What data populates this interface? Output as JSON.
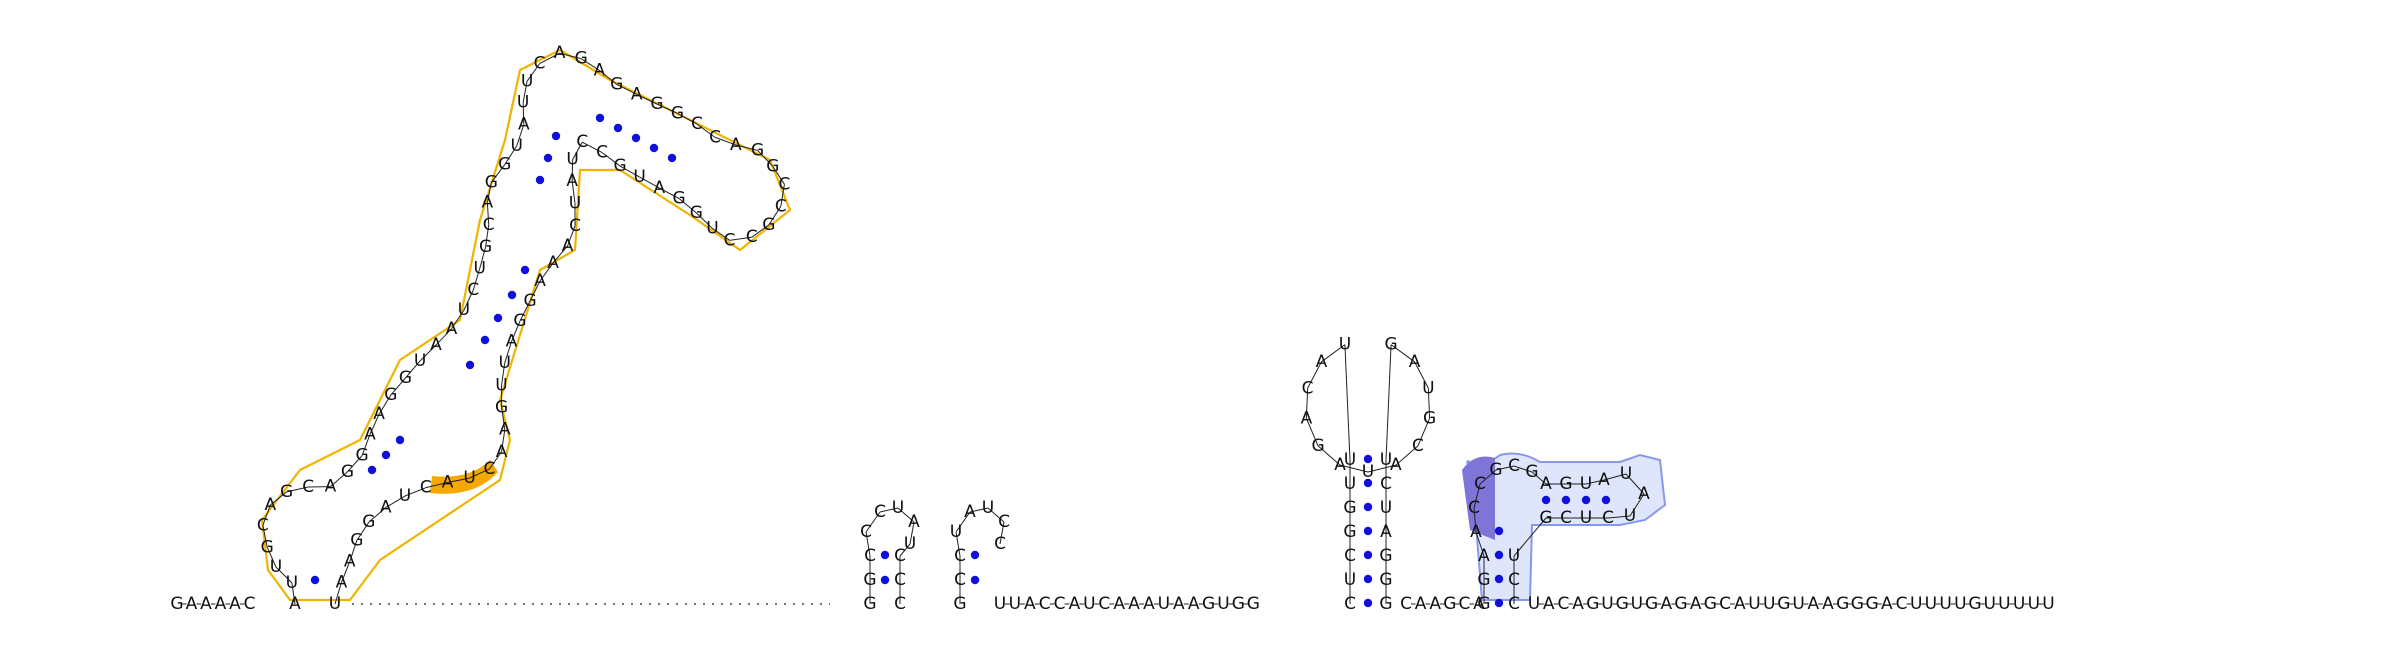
{
  "colors": {
    "background": "#ffffff",
    "nucleotide_text": "#111111",
    "backbone": "#222222",
    "base_pair_dot": "#1010dd",
    "highlight_orange_outline": "#f0b400",
    "highlight_orange_fill": "#f5a800",
    "highlight_blue_outline": "#8898e8",
    "highlight_blue_fill": "#dfe6fb",
    "highlight_blue_accent": "#7f74d8"
  },
  "sequence": {
    "prefix": "GAAAAC",
    "structured_5prime": "AUUGCAGCAGGAAGGUAAUCUGCAGGUAUUCAGAGAGGCCAGGCCGCCUGGAUGCCUAUCAAAGGAUUGAACUACUAGGAAU",
    "hairpins": "GGCCCUAUCCCGCCUAUCC",
    "middle": "UUACCAUCAAAUAAGUGG",
    "large_hairpin": "CUCGGUUUACAGAUACGUAGUCUAGGG",
    "interlinker": "CAAGCA",
    "small_hairpin_module": "GGAACCGCGAGUAUAUCUCGUCC",
    "suffix": "UACAGUGUGAGAGCAUUGUAAGGGACUUUUGUUUUU"
  },
  "annotations": [
    {
      "region": "orange-loop-highlight",
      "letters": "AUCA"
    },
    {
      "region": "blue-corner-highlight",
      "letters": "AGGU"
    }
  ]
}
